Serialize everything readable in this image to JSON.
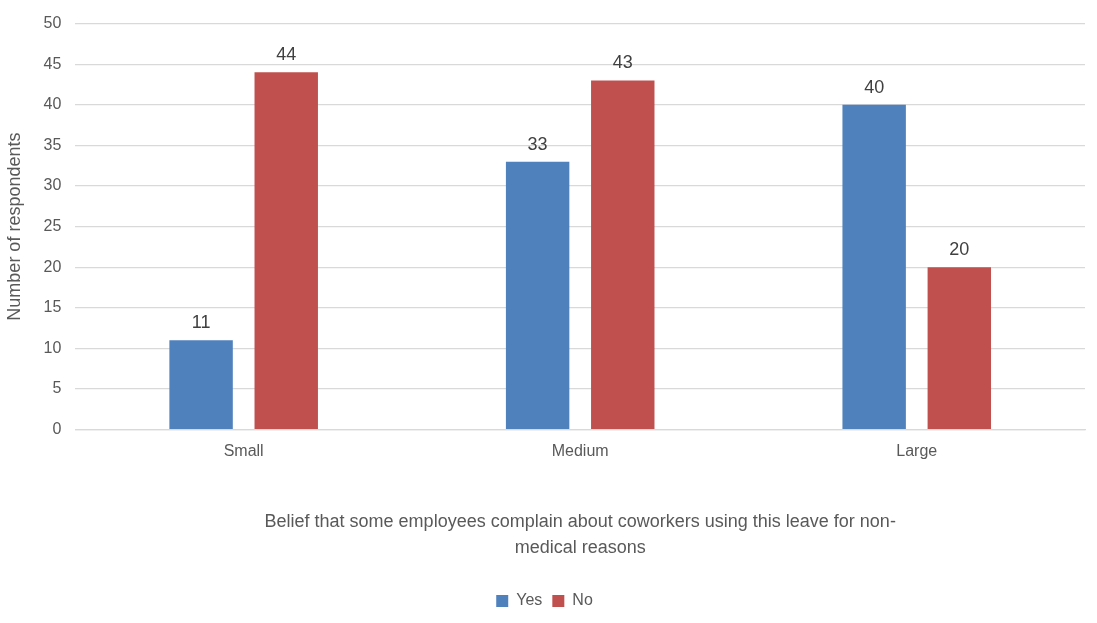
{
  "chart_data": {
    "type": "bar",
    "categories": [
      "Small",
      "Medium",
      "Large"
    ],
    "series": [
      {
        "name": "Yes",
        "color": "#4f81bd",
        "values": [
          11,
          33,
          40
        ]
      },
      {
        "name": "No",
        "color": "#c0504d",
        "values": [
          44,
          43,
          20
        ]
      }
    ],
    "xlabel": "Belief that some employees complain about coworkers using this leave for non-medical reasons",
    "ylabel": "Number of respondents",
    "ylim": [
      0,
      50
    ],
    "yticks": [
      0,
      5,
      10,
      15,
      20,
      25,
      30,
      35,
      40,
      45,
      50
    ],
    "grid": "y",
    "legend": "bottom",
    "data_labels": true
  }
}
